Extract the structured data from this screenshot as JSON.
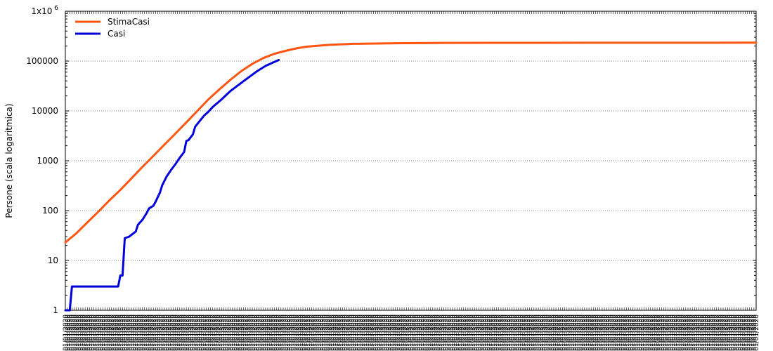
{
  "chart_data": {
    "type": "line",
    "ylabel": "Persone (scala logaritmica)",
    "yscale": "log",
    "ylim": [
      1,
      1000000
    ],
    "yticks": [
      {
        "value": 1,
        "label": "1"
      },
      {
        "value": 10,
        "label": "10"
      },
      {
        "value": 100,
        "label": "100"
      },
      {
        "value": 1000,
        "label": "1000"
      },
      {
        "value": 10000,
        "label": "10000"
      },
      {
        "value": 100000,
        "label": "100000"
      },
      {
        "value": 1000000,
        "label": "1x10",
        "label_sup": "6"
      }
    ],
    "x_start": "2020-02-21",
    "x_end": "2020-12-31",
    "x_tick_label": "01/01/2020",
    "grid": "horizontal dotted",
    "legend_position": "top-left",
    "series": [
      {
        "name": "StimaCasi",
        "color": "#ff5511",
        "points": [
          [
            "2020-02-21",
            23
          ],
          [
            "2020-02-26",
            35
          ],
          [
            "2020-03-02",
            58
          ],
          [
            "2020-03-07",
            95
          ],
          [
            "2020-03-12",
            160
          ],
          [
            "2020-03-17",
            260
          ],
          [
            "2020-03-22",
            440
          ],
          [
            "2020-03-27",
            750
          ],
          [
            "2020-04-01",
            1250
          ],
          [
            "2020-04-06",
            2100
          ],
          [
            "2020-04-11",
            3500
          ],
          [
            "2020-04-16",
            5900
          ],
          [
            "2020-04-21",
            10000
          ],
          [
            "2020-04-26",
            17000
          ],
          [
            "2020-05-01",
            27000
          ],
          [
            "2020-05-06",
            42000
          ],
          [
            "2020-05-11",
            63000
          ],
          [
            "2020-05-16",
            88000
          ],
          [
            "2020-05-21",
            115000
          ],
          [
            "2020-05-26",
            140000
          ],
          [
            "2020-05-31",
            160000
          ],
          [
            "2020-06-05",
            180000
          ],
          [
            "2020-06-10",
            195000
          ],
          [
            "2020-06-20",
            212000
          ],
          [
            "2020-07-01",
            222000
          ],
          [
            "2020-07-20",
            228000
          ],
          [
            "2020-08-10",
            231000
          ],
          [
            "2020-09-01",
            232000
          ],
          [
            "2020-10-15",
            233000
          ],
          [
            "2020-12-31",
            234000
          ]
        ]
      },
      {
        "name": "Casi",
        "color": "#0000dd",
        "points": [
          [
            "2020-02-21",
            1
          ],
          [
            "2020-02-23",
            1
          ],
          [
            "2020-02-24",
            3
          ],
          [
            "2020-03-16",
            3
          ],
          [
            "2020-03-17",
            5
          ],
          [
            "2020-03-18",
            5
          ],
          [
            "2020-03-19",
            28
          ],
          [
            "2020-03-21",
            30
          ],
          [
            "2020-03-24",
            38
          ],
          [
            "2020-03-25",
            52
          ],
          [
            "2020-03-27",
            65
          ],
          [
            "2020-03-29",
            90
          ],
          [
            "2020-03-30",
            110
          ],
          [
            "2020-04-01",
            125
          ],
          [
            "2020-04-02",
            150
          ],
          [
            "2020-04-04",
            230
          ],
          [
            "2020-04-05",
            320
          ],
          [
            "2020-04-07",
            480
          ],
          [
            "2020-04-09",
            650
          ],
          [
            "2020-04-11",
            850
          ],
          [
            "2020-04-13",
            1150
          ],
          [
            "2020-04-15",
            1500
          ],
          [
            "2020-04-16",
            2500
          ],
          [
            "2020-04-17",
            2600
          ],
          [
            "2020-04-19",
            3400
          ],
          [
            "2020-04-20",
            4800
          ],
          [
            "2020-04-22",
            6200
          ],
          [
            "2020-04-24",
            8000
          ],
          [
            "2020-04-26",
            9600
          ],
          [
            "2020-04-28",
            12000
          ],
          [
            "2020-05-02",
            17000
          ],
          [
            "2020-05-06",
            25000
          ],
          [
            "2020-05-10",
            34000
          ],
          [
            "2020-05-14",
            46000
          ],
          [
            "2020-05-18",
            62000
          ],
          [
            "2020-05-22",
            80000
          ],
          [
            "2020-05-26",
            96000
          ],
          [
            "2020-05-28",
            105000
          ]
        ]
      }
    ]
  }
}
